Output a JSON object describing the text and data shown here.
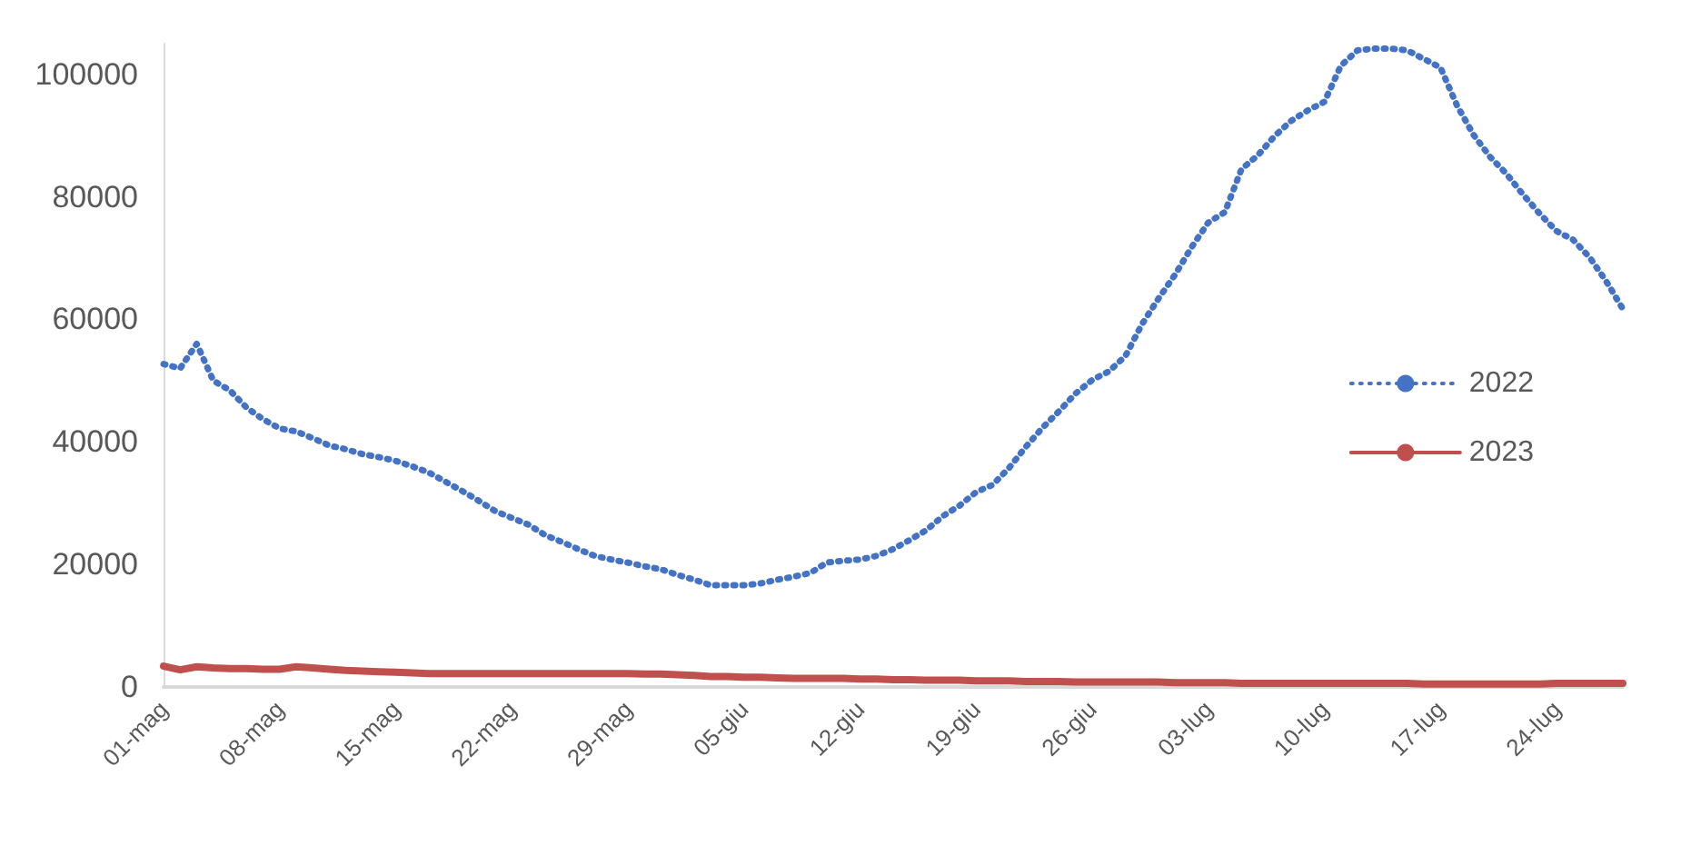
{
  "chart_data": {
    "type": "line",
    "categories": [
      "01-mag",
      null,
      null,
      null,
      null,
      null,
      null,
      "08-mag",
      null,
      null,
      null,
      null,
      null,
      null,
      "15-mag",
      null,
      null,
      null,
      null,
      null,
      null,
      "22-mag",
      null,
      null,
      null,
      null,
      null,
      null,
      "29-mag",
      null,
      null,
      null,
      null,
      null,
      null,
      "05-giu",
      null,
      null,
      null,
      null,
      null,
      null,
      "12-giu",
      null,
      null,
      null,
      null,
      null,
      null,
      "19-giu",
      null,
      null,
      null,
      null,
      null,
      null,
      "26-giu",
      null,
      null,
      null,
      null,
      null,
      null,
      "03-lug",
      null,
      null,
      null,
      null,
      null,
      null,
      "10-lug",
      null,
      null,
      null,
      null,
      null,
      null,
      "17-lug",
      null,
      null,
      null,
      null,
      null,
      null,
      "24-lug",
      null,
      null,
      null,
      null
    ],
    "series": [
      {
        "name": "2022",
        "color": "#4472c4",
        "line_style": "dotted",
        "values": [
          52700,
          52000,
          56000,
          50000,
          48400,
          45600,
          43700,
          42200,
          41700,
          40600,
          39400,
          38800,
          38000,
          37500,
          36900,
          36000,
          35000,
          33500,
          32000,
          30400,
          28700,
          27600,
          26500,
          24800,
          23700,
          22500,
          21400,
          20800,
          20300,
          19700,
          19200,
          18300,
          17500,
          16600,
          16600,
          16600,
          16900,
          17500,
          18000,
          18600,
          20300,
          20600,
          20800,
          21400,
          22500,
          24000,
          25600,
          27900,
          29600,
          31800,
          33000,
          35800,
          39200,
          42300,
          45000,
          47900,
          50100,
          51500,
          54000,
          59200,
          63400,
          67300,
          71800,
          75800,
          77500,
          84500,
          86800,
          89900,
          92400,
          94100,
          95500,
          101400,
          103900,
          104200,
          104200,
          103900,
          102500,
          101100,
          94900,
          90100,
          86500,
          83700,
          80300,
          77200,
          74400,
          73000,
          70100,
          66200,
          61700
        ]
      },
      {
        "name": "2023",
        "color": "#c0504d",
        "line_style": "solid",
        "values": [
          3400,
          2800,
          3300,
          3100,
          3000,
          3000,
          2900,
          2900,
          3300,
          3100,
          2900,
          2700,
          2600,
          2500,
          2400,
          2300,
          2200,
          2200,
          2200,
          2200,
          2200,
          2200,
          2200,
          2200,
          2200,
          2200,
          2200,
          2200,
          2200,
          2100,
          2100,
          2000,
          1900,
          1700,
          1700,
          1600,
          1600,
          1500,
          1400,
          1400,
          1400,
          1400,
          1300,
          1300,
          1200,
          1200,
          1100,
          1100,
          1100,
          1000,
          1000,
          1000,
          900,
          900,
          900,
          800,
          800,
          800,
          800,
          800,
          800,
          700,
          700,
          700,
          700,
          600,
          600,
          600,
          600,
          600,
          600,
          600,
          600,
          600,
          600,
          600,
          500,
          500,
          500,
          500,
          500,
          500,
          500,
          500,
          600,
          600,
          600,
          600,
          600
        ]
      }
    ],
    "ylim": [
      0,
      105000
    ],
    "yticks": [
      0,
      20000,
      40000,
      60000,
      80000,
      100000
    ],
    "grid": false,
    "legend": "right",
    "marker": "none"
  }
}
